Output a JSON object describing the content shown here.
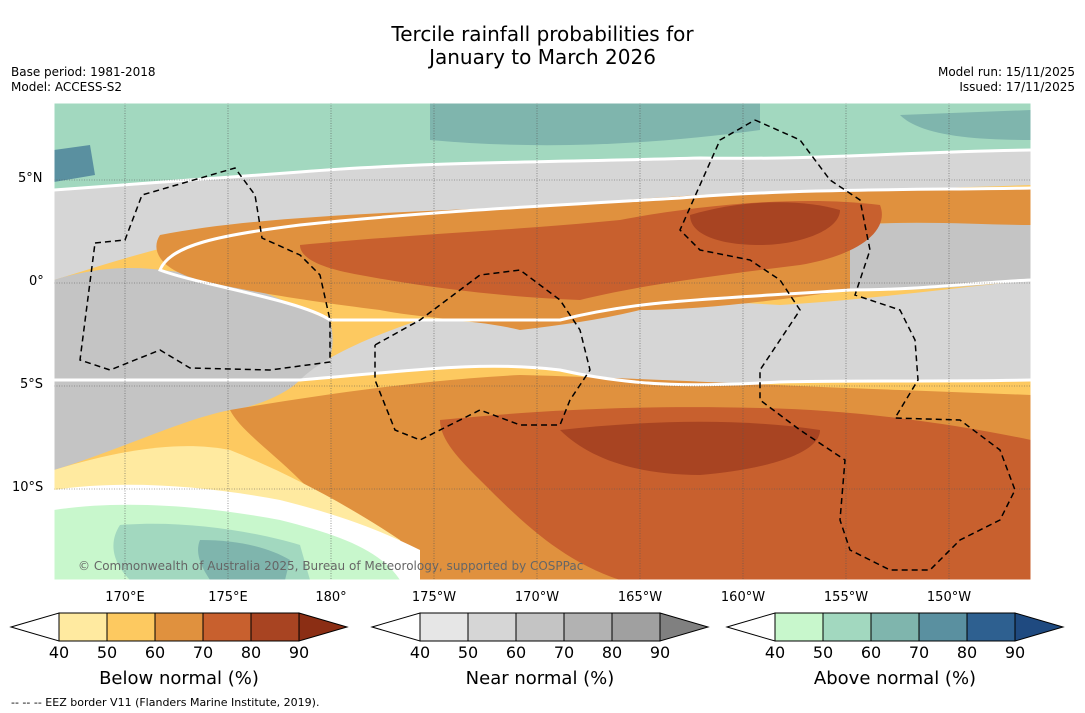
{
  "title": {
    "line1": "Tercile rainfall probabilities for",
    "line2": "January to March 2026"
  },
  "meta": {
    "base_period": "Base period: 1981-2018",
    "model": "Model: ACCESS-S2",
    "model_run": "Model run: 15/11/2025",
    "issued": "Issued: 17/11/2025"
  },
  "axes": {
    "lat_labels": [
      "5°N",
      "0°",
      "5°S",
      "10°S"
    ],
    "lon_labels": [
      "170°E",
      "175°E",
      "180°",
      "175°W",
      "170°W",
      "165°W",
      "160°W",
      "155°W",
      "150°W"
    ]
  },
  "copyright": "© Commonwealth of Australia 2025, Bureau of Meteorology, supported by COSPPac",
  "colorbars": [
    {
      "label": "Below normal (%)",
      "ticks": [
        "40",
        "50",
        "60",
        "70",
        "80",
        "90"
      ],
      "colors": [
        "#ffffff",
        "#ffeaa0",
        "#fdc960",
        "#e0913e",
        "#c8602e",
        "#a84422",
        "#8b2e14"
      ]
    },
    {
      "label": "Near normal (%)",
      "ticks": [
        "40",
        "50",
        "60",
        "70",
        "80",
        "90"
      ],
      "colors": [
        "#ffffff",
        "#e6e6e6",
        "#d6d6d6",
        "#c4c4c4",
        "#b2b2b2",
        "#a0a0a0",
        "#808080"
      ]
    },
    {
      "label": "Above normal (%)",
      "ticks": [
        "40",
        "50",
        "60",
        "70",
        "80",
        "90"
      ],
      "colors": [
        "#ffffff",
        "#c8f7cc",
        "#a2d8bf",
        "#7fb5ad",
        "#5a90a0",
        "#2e6090",
        "#1f4a80"
      ]
    }
  ],
  "footnote": "--  --  -- EEZ border V11 (Flanders Marine Institute, 2019)."
}
